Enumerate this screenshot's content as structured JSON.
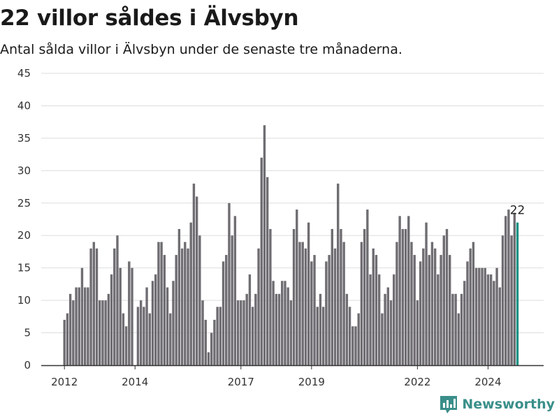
{
  "title": "22 villor såldes i Älvsbyn",
  "subtitle": "Antal sålda villor i Älvsbyn under de senaste tre månaderna.",
  "brand": {
    "name": "Newsworthy",
    "color": "#3a8f8a",
    "icon": "bar-chart-logo-icon"
  },
  "colors": {
    "bar": "#6f6d72",
    "highlight": "#1b9384",
    "grid": "#dddddd",
    "axis": "#333333"
  },
  "chart_data": {
    "type": "bar",
    "ylim": [
      0,
      45
    ],
    "yticks": [
      0,
      5,
      10,
      15,
      20,
      25,
      30,
      35,
      40,
      45
    ],
    "xticks": [
      {
        "label": "2012",
        "index": 0
      },
      {
        "label": "2014",
        "index": 24
      },
      {
        "label": "2017",
        "index": 60
      },
      {
        "label": "2019",
        "index": 84
      },
      {
        "label": "2022",
        "index": 120
      },
      {
        "label": "2024",
        "index": 144
      }
    ],
    "grid": true,
    "values": [
      7,
      8,
      11,
      10,
      12,
      12,
      15,
      12,
      12,
      18,
      19,
      18,
      10,
      10,
      10,
      11,
      14,
      18,
      20,
      15,
      8,
      6,
      16,
      15,
      0,
      9,
      10,
      9,
      12,
      8,
      13,
      14,
      19,
      19,
      17,
      12,
      8,
      13,
      17,
      21,
      18,
      19,
      18,
      22,
      28,
      26,
      20,
      10,
      7,
      2,
      5,
      7,
      9,
      9,
      16,
      17,
      25,
      20,
      23,
      10,
      10,
      10,
      11,
      14,
      9,
      11,
      18,
      32,
      37,
      29,
      21,
      13,
      11,
      11,
      13,
      13,
      12,
      10,
      21,
      24,
      19,
      19,
      18,
      22,
      16,
      17,
      9,
      11,
      9,
      16,
      17,
      21,
      18,
      28,
      21,
      19,
      11,
      9,
      6,
      6,
      8,
      19,
      21,
      24,
      14,
      18,
      17,
      14,
      8,
      11,
      12,
      10,
      14,
      19,
      23,
      21,
      21,
      23,
      19,
      17,
      10,
      16,
      18,
      22,
      17,
      19,
      18,
      14,
      17,
      20,
      21,
      17,
      11,
      11,
      8,
      11,
      13,
      16,
      18,
      19,
      15,
      15,
      15,
      15,
      14,
      14,
      13,
      15,
      12,
      20,
      23,
      24,
      20,
      23.5,
      22
    ],
    "highlight_index": 154,
    "annotation": "22"
  }
}
